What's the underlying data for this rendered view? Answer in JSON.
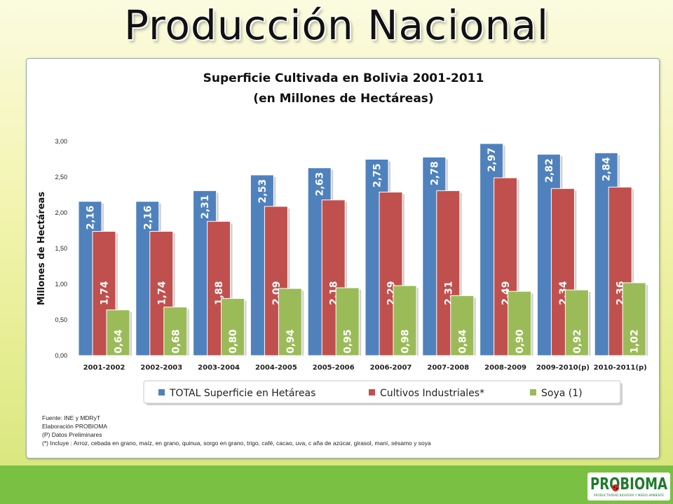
{
  "slide": {
    "title": "Producción  Nacional"
  },
  "colors": {
    "total": "#4f81bd",
    "industriales": "#c0504d",
    "soya": "#9bbb59",
    "footer": "#7ac043",
    "logo": "#1f7a2e"
  },
  "notes": [
    "Fuente: INE y MDRyT",
    "Elaboración PROBIOMA",
    "(P) Datos Preliminares",
    "(*) Incluye : Arroz, cebada en grano, maíz, en grano, quinua, sorgo en grano, trigo, café, cacao, uva, c aña de azúcar, girasol, maní, sésamo y soya"
  ],
  "logo": {
    "text": "PROBIOMA",
    "subtext": "PRODUCTIVIDAD BIOSFERA Y MEDIO AMBIENTE",
    "icon": "ladybug-icon"
  },
  "chart_data": {
    "type": "bar",
    "title": "Superficie Cultivada en Bolivia 2001-2011",
    "subtitle": "(en Millones de Hectáreas)",
    "xlabel": "",
    "ylabel": "Millones de Hectáreas",
    "ylim": [
      0,
      3
    ],
    "yticks": [
      "0,00",
      "0,50",
      "1,00",
      "1,50",
      "2,00",
      "2,50",
      "3,00"
    ],
    "grid": false,
    "legend_position": "bottom",
    "categories": [
      "2001-2002",
      "2002-2003",
      "2003-2004",
      "2004-2005",
      "2005-2006",
      "2006-2007",
      "2007-2008",
      "2008-2009",
      "2009-2010(p)",
      "2010-2011(p)"
    ],
    "series": [
      {
        "name": "TOTAL Superficie en Hetáreas",
        "values": [
          2.16,
          2.16,
          2.31,
          2.53,
          2.63,
          2.75,
          2.78,
          2.97,
          2.82,
          2.84
        ],
        "labels": [
          "2,16",
          "2,16",
          "2,31",
          "2,53",
          "2,63",
          "2,75",
          "2,78",
          "2,97",
          "2,82",
          "2,84"
        ]
      },
      {
        "name": "Cultivos Industriales*",
        "values": [
          1.74,
          1.74,
          1.88,
          2.09,
          2.18,
          2.29,
          2.31,
          2.49,
          2.34,
          2.36
        ],
        "labels": [
          "1,74",
          "1,74",
          "1,88",
          "2,09",
          "2,18",
          "2,29",
          "2,31",
          "2,49",
          "2,34",
          "2,36"
        ]
      },
      {
        "name": "Soya (1)",
        "values": [
          0.64,
          0.68,
          0.8,
          0.94,
          0.95,
          0.98,
          0.84,
          0.9,
          0.92,
          1.02
        ],
        "labels": [
          "0,64",
          "0,68",
          "0,80",
          "0,94",
          "0,95",
          "0,98",
          "0,84",
          "0,90",
          "0,92",
          "1,02"
        ]
      }
    ]
  }
}
